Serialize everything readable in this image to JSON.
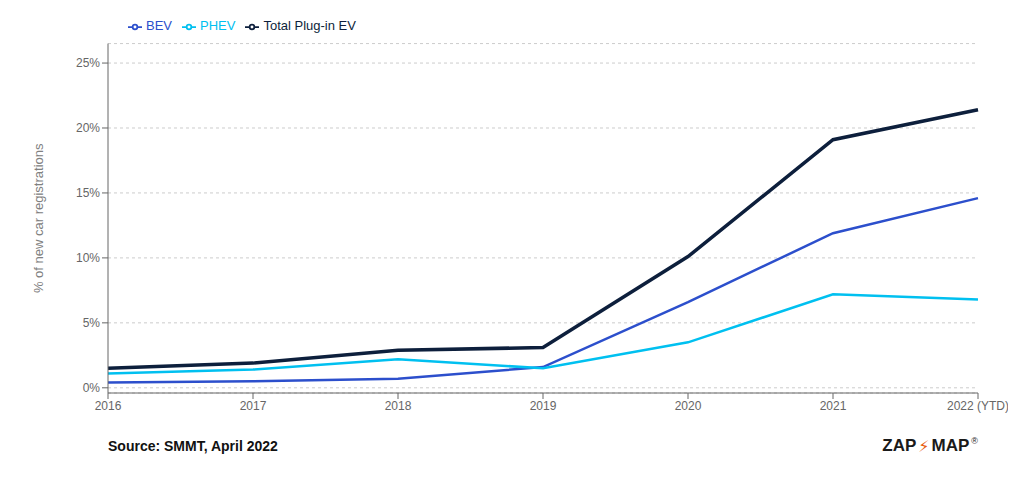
{
  "chart_data": {
    "type": "line",
    "categories": [
      "2016",
      "2017",
      "2018",
      "2019",
      "2020",
      "2021",
      "2022 (YTD)"
    ],
    "series": [
      {
        "name": "BEV",
        "color": "#2c4fcc",
        "values": [
          0.4,
          0.5,
          0.7,
          1.6,
          6.6,
          11.9,
          14.6
        ]
      },
      {
        "name": "PHEV",
        "color": "#00c0f0",
        "values": [
          1.1,
          1.4,
          2.2,
          1.5,
          3.5,
          7.2,
          6.8
        ]
      },
      {
        "name": "Total Plug-in EV",
        "color": "#0d1f3c",
        "values": [
          1.5,
          1.9,
          2.9,
          3.1,
          10.1,
          19.1,
          21.4
        ]
      }
    ],
    "ylabel": "% of new car registrations",
    "ylim": [
      -0.4,
      26.5
    ],
    "yticks": [
      {
        "value": 0,
        "label": "0%"
      },
      {
        "value": 5,
        "label": "5%"
      },
      {
        "value": 10,
        "label": "10%"
      },
      {
        "value": 15,
        "label": "15%"
      },
      {
        "value": 20,
        "label": "20%"
      },
      {
        "value": 25,
        "label": "25%"
      }
    ],
    "grid": true,
    "legend": "top",
    "annotations": [
      "Source: SMMT, April 2022",
      "ZAP",
      "⚡",
      "MAP",
      "®"
    ]
  }
}
